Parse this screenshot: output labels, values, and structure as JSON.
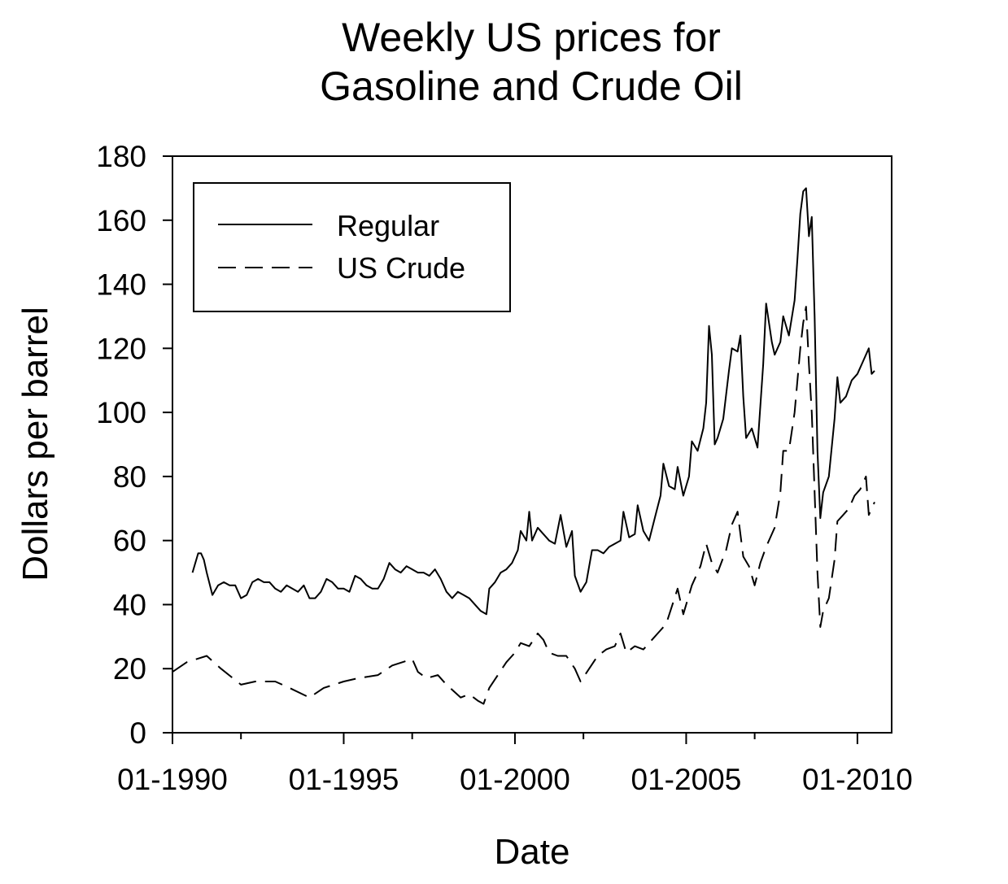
{
  "chart_data": {
    "type": "line",
    "title": "Weekly US prices for\nGasoline and Crude Oil",
    "xlabel": "Date",
    "ylabel": "Dollars per barrel",
    "x_axis_type": "date",
    "xlim": [
      "1990-01",
      "2011-01"
    ],
    "ylim": [
      0,
      180
    ],
    "x_ticks": [
      "1990-01",
      "1995-01",
      "2000-01",
      "2005-01",
      "2010-01"
    ],
    "x_tick_labels": [
      "01-1990",
      "01-1995",
      "01-2000",
      "01-2005",
      "01-2010"
    ],
    "x_minor_ticks": [
      "1992-01",
      "1997-01",
      "2002-01",
      "2007-01"
    ],
    "y_ticks": [
      0,
      20,
      40,
      60,
      80,
      100,
      120,
      140,
      160,
      180
    ],
    "y_tick_labels": [
      "0",
      "20",
      "40",
      "60",
      "80",
      "100",
      "120",
      "140",
      "160",
      "180"
    ],
    "grid": false,
    "legend_position": "top-left",
    "series": [
      {
        "name": "Regular",
        "line_style": "solid",
        "color": "#000000",
        "points": [
          [
            "1990-08",
            50
          ],
          [
            "1990-09",
            53
          ],
          [
            "1990-10",
            56
          ],
          [
            "1990-11",
            56
          ],
          [
            "1990-12",
            54
          ],
          [
            "1991-01",
            50
          ],
          [
            "1991-03",
            43
          ],
          [
            "1991-05",
            46
          ],
          [
            "1991-07",
            47
          ],
          [
            "1991-09",
            46
          ],
          [
            "1991-11",
            46
          ],
          [
            "1992-01",
            42
          ],
          [
            "1992-03",
            43
          ],
          [
            "1992-05",
            47
          ],
          [
            "1992-07",
            48
          ],
          [
            "1992-09",
            47
          ],
          [
            "1992-11",
            47
          ],
          [
            "1993-01",
            45
          ],
          [
            "1993-03",
            44
          ],
          [
            "1993-05",
            46
          ],
          [
            "1993-07",
            45
          ],
          [
            "1993-09",
            44
          ],
          [
            "1993-11",
            46
          ],
          [
            "1994-01",
            42
          ],
          [
            "1994-03",
            42
          ],
          [
            "1994-05",
            44
          ],
          [
            "1994-07",
            48
          ],
          [
            "1994-09",
            47
          ],
          [
            "1994-11",
            45
          ],
          [
            "1995-01",
            45
          ],
          [
            "1995-03",
            44
          ],
          [
            "1995-05",
            49
          ],
          [
            "1995-07",
            48
          ],
          [
            "1995-09",
            46
          ],
          [
            "1995-11",
            45
          ],
          [
            "1996-01",
            45
          ],
          [
            "1996-03",
            48
          ],
          [
            "1996-05",
            53
          ],
          [
            "1996-07",
            51
          ],
          [
            "1996-09",
            50
          ],
          [
            "1996-11",
            52
          ],
          [
            "1997-01",
            51
          ],
          [
            "1997-03",
            50
          ],
          [
            "1997-05",
            50
          ],
          [
            "1997-07",
            49
          ],
          [
            "1997-09",
            51
          ],
          [
            "1997-11",
            48
          ],
          [
            "1998-01",
            44
          ],
          [
            "1998-03",
            42
          ],
          [
            "1998-05",
            44
          ],
          [
            "1998-07",
            43
          ],
          [
            "1998-09",
            42
          ],
          [
            "1998-11",
            40
          ],
          [
            "1999-01",
            38
          ],
          [
            "1999-03",
            37
          ],
          [
            "1999-04",
            45
          ],
          [
            "1999-06",
            47
          ],
          [
            "1999-08",
            50
          ],
          [
            "1999-10",
            51
          ],
          [
            "1999-12",
            53
          ],
          [
            "2000-02",
            57
          ],
          [
            "2000-03",
            63
          ],
          [
            "2000-05",
            60
          ],
          [
            "2000-06",
            69
          ],
          [
            "2000-07",
            60
          ],
          [
            "2000-09",
            64
          ],
          [
            "2000-11",
            62
          ],
          [
            "2001-01",
            60
          ],
          [
            "2001-03",
            59
          ],
          [
            "2001-05",
            68
          ],
          [
            "2001-07",
            58
          ],
          [
            "2001-09",
            63
          ],
          [
            "2001-10",
            49
          ],
          [
            "2001-12",
            44
          ],
          [
            "2002-02",
            47
          ],
          [
            "2002-04",
            57
          ],
          [
            "2002-06",
            57
          ],
          [
            "2002-08",
            56
          ],
          [
            "2002-10",
            58
          ],
          [
            "2002-12",
            59
          ],
          [
            "2003-02",
            60
          ],
          [
            "2003-03",
            69
          ],
          [
            "2003-05",
            61
          ],
          [
            "2003-07",
            62
          ],
          [
            "2003-08",
            71
          ],
          [
            "2003-10",
            63
          ],
          [
            "2003-12",
            60
          ],
          [
            "2004-02",
            67
          ],
          [
            "2004-04",
            74
          ],
          [
            "2004-05",
            84
          ],
          [
            "2004-07",
            77
          ],
          [
            "2004-09",
            76
          ],
          [
            "2004-10",
            83
          ],
          [
            "2004-12",
            74
          ],
          [
            "2005-02",
            80
          ],
          [
            "2005-03",
            91
          ],
          [
            "2005-05",
            88
          ],
          [
            "2005-07",
            95
          ],
          [
            "2005-08",
            103
          ],
          [
            "2005-09",
            127
          ],
          [
            "2005-10",
            118
          ],
          [
            "2005-11",
            90
          ],
          [
            "2005-12",
            92
          ],
          [
            "2006-02",
            98
          ],
          [
            "2006-04",
            113
          ],
          [
            "2006-05",
            120
          ],
          [
            "2006-07",
            119
          ],
          [
            "2006-08",
            124
          ],
          [
            "2006-09",
            105
          ],
          [
            "2006-10",
            92
          ],
          [
            "2006-12",
            95
          ],
          [
            "2007-02",
            89
          ],
          [
            "2007-04",
            115
          ],
          [
            "2007-05",
            134
          ],
          [
            "2007-07",
            122
          ],
          [
            "2007-08",
            118
          ],
          [
            "2007-10",
            122
          ],
          [
            "2007-11",
            130
          ],
          [
            "2008-01",
            124
          ],
          [
            "2008-03",
            135
          ],
          [
            "2008-04",
            148
          ],
          [
            "2008-05",
            162
          ],
          [
            "2008-06",
            169
          ],
          [
            "2008-07",
            170
          ],
          [
            "2008-08",
            155
          ],
          [
            "2008-09",
            161
          ],
          [
            "2008-10",
            130
          ],
          [
            "2008-11",
            88
          ],
          [
            "2008-12",
            67
          ],
          [
            "2009-01",
            75
          ],
          [
            "2009-03",
            80
          ],
          [
            "2009-05",
            98
          ],
          [
            "2009-06",
            111
          ],
          [
            "2009-07",
            103
          ],
          [
            "2009-09",
            105
          ],
          [
            "2009-11",
            110
          ],
          [
            "2010-01",
            112
          ],
          [
            "2010-03",
            116
          ],
          [
            "2010-05",
            120
          ],
          [
            "2010-06",
            112
          ],
          [
            "2010-07",
            113
          ]
        ]
      },
      {
        "name": "US Crude",
        "line_style": "dashed",
        "color": "#000000",
        "points": [
          [
            "1990-01",
            19
          ],
          [
            "1990-06",
            22
          ],
          [
            "1991-01",
            24
          ],
          [
            "1991-06",
            20
          ],
          [
            "1992-01",
            15
          ],
          [
            "1992-06",
            16
          ],
          [
            "1993-01",
            16
          ],
          [
            "1993-06",
            14
          ],
          [
            "1994-01",
            11
          ],
          [
            "1994-06",
            14
          ],
          [
            "1995-01",
            16
          ],
          [
            "1995-06",
            17
          ],
          [
            "1996-01",
            18
          ],
          [
            "1996-06",
            21
          ],
          [
            "1997-01",
            23
          ],
          [
            "1997-03",
            19
          ],
          [
            "1997-06",
            17
          ],
          [
            "1997-10",
            18
          ],
          [
            "1998-01",
            15
          ],
          [
            "1998-06",
            11
          ],
          [
            "1998-09",
            12
          ],
          [
            "1998-12",
            10
          ],
          [
            "1999-02",
            9
          ],
          [
            "1999-04",
            14
          ],
          [
            "1999-07",
            18
          ],
          [
            "1999-10",
            22
          ],
          [
            "2000-01",
            25
          ],
          [
            "2000-03",
            28
          ],
          [
            "2000-06",
            27
          ],
          [
            "2000-09",
            31
          ],
          [
            "2000-11",
            29
          ],
          [
            "2001-01",
            25
          ],
          [
            "2001-04",
            24
          ],
          [
            "2001-07",
            24
          ],
          [
            "2001-10",
            20
          ],
          [
            "2001-12",
            16
          ],
          [
            "2002-03",
            20
          ],
          [
            "2002-06",
            24
          ],
          [
            "2002-09",
            26
          ],
          [
            "2002-12",
            27
          ],
          [
            "2003-02",
            31
          ],
          [
            "2003-04",
            25
          ],
          [
            "2003-07",
            27
          ],
          [
            "2003-10",
            26
          ],
          [
            "2004-01",
            29
          ],
          [
            "2004-04",
            32
          ],
          [
            "2004-06",
            34
          ],
          [
            "2004-10",
            45
          ],
          [
            "2004-12",
            37
          ],
          [
            "2005-03",
            46
          ],
          [
            "2005-06",
            52
          ],
          [
            "2005-08",
            59
          ],
          [
            "2005-10",
            53
          ],
          [
            "2005-12",
            50
          ],
          [
            "2006-03",
            57
          ],
          [
            "2006-05",
            65
          ],
          [
            "2006-07",
            69
          ],
          [
            "2006-09",
            55
          ],
          [
            "2006-11",
            52
          ],
          [
            "2007-01",
            46
          ],
          [
            "2007-03",
            53
          ],
          [
            "2007-05",
            58
          ],
          [
            "2007-08",
            64
          ],
          [
            "2007-10",
            75
          ],
          [
            "2007-11",
            88
          ],
          [
            "2008-01",
            88
          ],
          [
            "2008-03",
            100
          ],
          [
            "2008-05",
            120
          ],
          [
            "2008-06",
            128
          ],
          [
            "2008-07",
            133
          ],
          [
            "2008-08",
            115
          ],
          [
            "2008-09",
            100
          ],
          [
            "2008-10",
            75
          ],
          [
            "2008-11",
            50
          ],
          [
            "2008-12",
            33
          ],
          [
            "2009-01",
            38
          ],
          [
            "2009-03",
            42
          ],
          [
            "2009-05",
            54
          ],
          [
            "2009-06",
            66
          ],
          [
            "2009-08",
            68
          ],
          [
            "2009-10",
            70
          ],
          [
            "2009-12",
            74
          ],
          [
            "2010-02",
            76
          ],
          [
            "2010-04",
            80
          ],
          [
            "2010-05",
            68
          ],
          [
            "2010-07",
            72
          ]
        ]
      }
    ]
  }
}
